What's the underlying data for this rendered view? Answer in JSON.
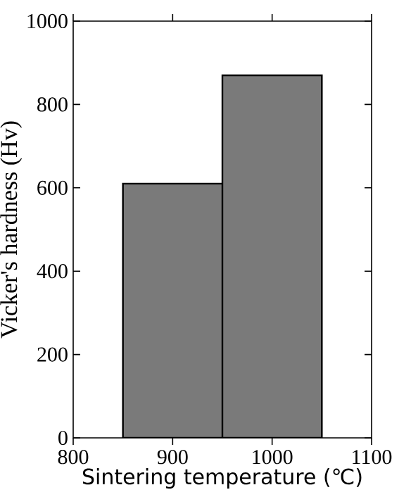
{
  "chart_data": {
    "type": "bar",
    "xlabel": "Sintering temperature (℃)",
    "ylabel": "Vicker's hardness (Hv)",
    "x": [
      900,
      1000
    ],
    "values": [
      610,
      870
    ],
    "color": "#7a7a7a",
    "xlim": [
      800,
      1100
    ],
    "xticks": [
      800,
      900,
      1000,
      1100
    ],
    "ylim": [
      0,
      1000
    ],
    "yticks": [
      0,
      200,
      400,
      600,
      800,
      1000
    ]
  }
}
